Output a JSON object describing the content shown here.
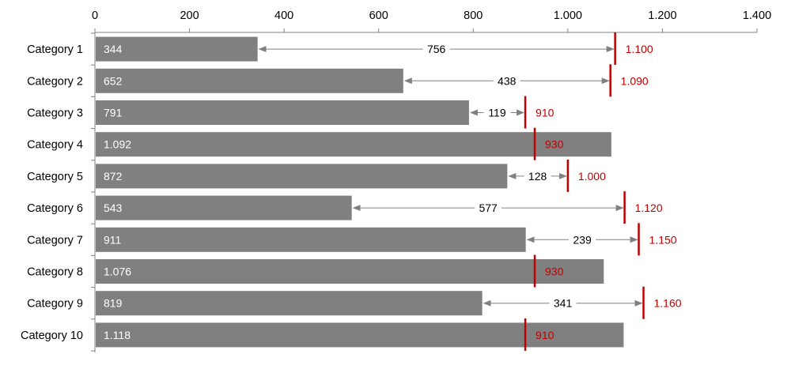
{
  "chart_data": {
    "type": "bar",
    "orientation": "horizontal",
    "title": "",
    "xlabel": "",
    "ylabel": "",
    "xlim": [
      0,
      1400
    ],
    "x_ticks": [
      {
        "value": 0,
        "label": "0"
      },
      {
        "value": 200,
        "label": "200"
      },
      {
        "value": 400,
        "label": "400"
      },
      {
        "value": 600,
        "label": "600"
      },
      {
        "value": 800,
        "label": "800"
      },
      {
        "value": 1000,
        "label": "1.000"
      },
      {
        "value": 1200,
        "label": "1.200"
      },
      {
        "value": 1400,
        "label": "1.400"
      }
    ],
    "axis_position": "top",
    "grid": false,
    "categories": [
      "Category 1",
      "Category 2",
      "Category 3",
      "Category 4",
      "Category 5",
      "Category 6",
      "Category 7",
      "Category 8",
      "Category 9",
      "Category 10"
    ],
    "values": [
      344,
      652,
      791,
      1092,
      872,
      543,
      911,
      1076,
      819,
      1118
    ],
    "value_labels": [
      "344",
      "652",
      "791",
      "1.092",
      "872",
      "543",
      "911",
      "1.076",
      "819",
      "1.118"
    ],
    "targets": [
      1100,
      1090,
      910,
      930,
      1000,
      1120,
      1150,
      930,
      1160,
      910
    ],
    "target_labels": [
      "1.100",
      "1.090",
      "910",
      "930",
      "1.000",
      "1.120",
      "1.150",
      "930",
      "1.160",
      "910"
    ],
    "gaps": [
      756,
      438,
      119,
      null,
      128,
      577,
      239,
      null,
      341,
      null
    ],
    "gap_labels": [
      "756",
      "438",
      "119",
      "",
      "128",
      "577",
      "239",
      "",
      "341",
      ""
    ],
    "colors": {
      "bar": "#808080",
      "target": "#c00000",
      "arrow": "#808080",
      "axis": "#808080",
      "value_text": "#ffffff"
    }
  }
}
